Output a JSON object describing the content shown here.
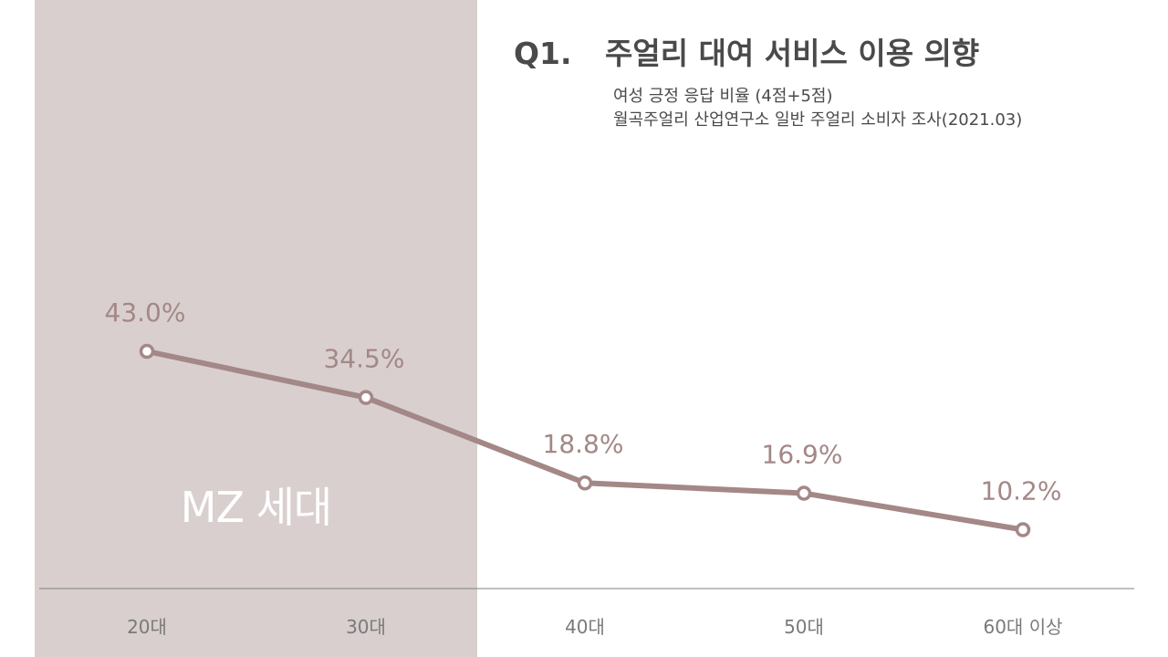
{
  "title": {
    "number": "Q1.",
    "text": "주얼리 대여 서비스 이용 의향"
  },
  "subtitle_lines": [
    "여성 긍정 응답 비율 (4점+5점)",
    "월곡주얼리 산업연구소 일반 주얼리 소비자 조사(2021.03)"
  ],
  "highlight_label": "MZ 세대",
  "colors": {
    "line": "#a38887",
    "label": "#a38887",
    "band": "#d9cfcf",
    "axis": "#808080",
    "tick": "#7a7a7a"
  },
  "chart_data": {
    "type": "line",
    "categories": [
      "20대",
      "30대",
      "40대",
      "50대",
      "60대 이상"
    ],
    "series": [
      {
        "values": [
          43.0,
          34.5,
          18.8,
          16.9,
          10.2
        ]
      }
    ],
    "data_labels": [
      "43.0%",
      "34.5%",
      "18.8%",
      "16.9%",
      "10.2%"
    ],
    "highlight_categories": [
      "20대",
      "30대"
    ],
    "xlabel": "",
    "ylabel": ""
  }
}
